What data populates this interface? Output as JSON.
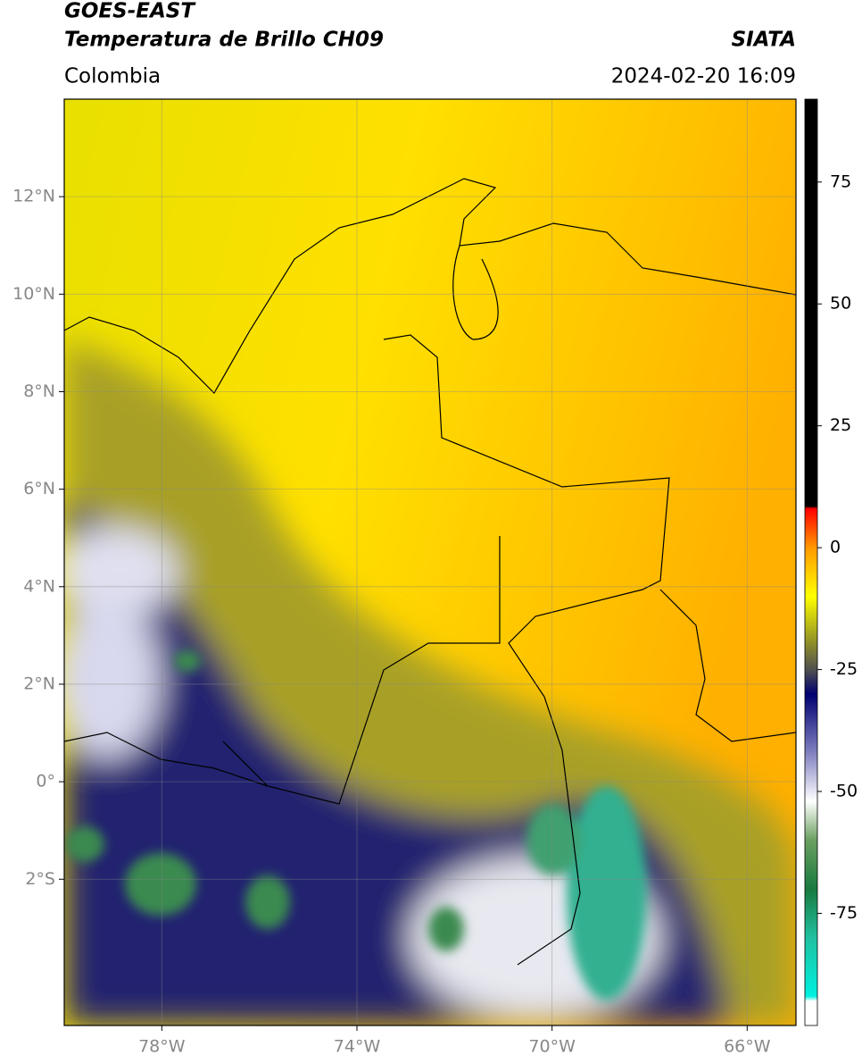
{
  "header": {
    "satellite": "GOES-EAST",
    "product": "Temperatura de Brillo CH09",
    "region": "Colombia",
    "source": "SIATA",
    "datetime": "2024-02-20 16:09"
  },
  "map": {
    "lonlim": [
      -80,
      -65
    ],
    "latlim": [
      -5,
      14
    ],
    "grid": true,
    "xticks": [
      {
        "value": -78,
        "label": "78°W"
      },
      {
        "value": -74,
        "label": "74°W"
      },
      {
        "value": -70,
        "label": "70°W"
      },
      {
        "value": -66,
        "label": "66°W"
      }
    ],
    "yticks": [
      {
        "value": 12,
        "label": "12°N"
      },
      {
        "value": 10,
        "label": "10°N"
      },
      {
        "value": 8,
        "label": "8°N"
      },
      {
        "value": 6,
        "label": "6°N"
      },
      {
        "value": 4,
        "label": "4°N"
      },
      {
        "value": 2,
        "label": "2°N"
      },
      {
        "value": 0,
        "label": "0°"
      },
      {
        "value": -2,
        "label": "2°S"
      }
    ]
  },
  "colorbar": {
    "lim": [
      -98,
      92
    ],
    "ticks": [
      75,
      50,
      25,
      0,
      -25,
      -50,
      -75
    ],
    "stops": [
      {
        "value": -98,
        "color": "#ffffff"
      },
      {
        "value": -93,
        "color": "#ffffff"
      },
      {
        "value": -92,
        "color": "#00f0e0"
      },
      {
        "value": -80,
        "color": "#20c0a0"
      },
      {
        "value": -70,
        "color": "#1a7a40"
      },
      {
        "value": -60,
        "color": "#6aa060"
      },
      {
        "value": -52,
        "color": "#ffffff"
      },
      {
        "value": -42,
        "color": "#8080c0"
      },
      {
        "value": -30,
        "color": "#000070"
      },
      {
        "value": -25,
        "color": "#505050"
      },
      {
        "value": -18,
        "color": "#a0a020"
      },
      {
        "value": -10,
        "color": "#ffff00"
      },
      {
        "value": 0,
        "color": "#ff9900"
      },
      {
        "value": 8,
        "color": "#ff0000"
      },
      {
        "value": 8.5,
        "color": "#000000"
      },
      {
        "value": 92,
        "color": "#000000"
      }
    ]
  }
}
